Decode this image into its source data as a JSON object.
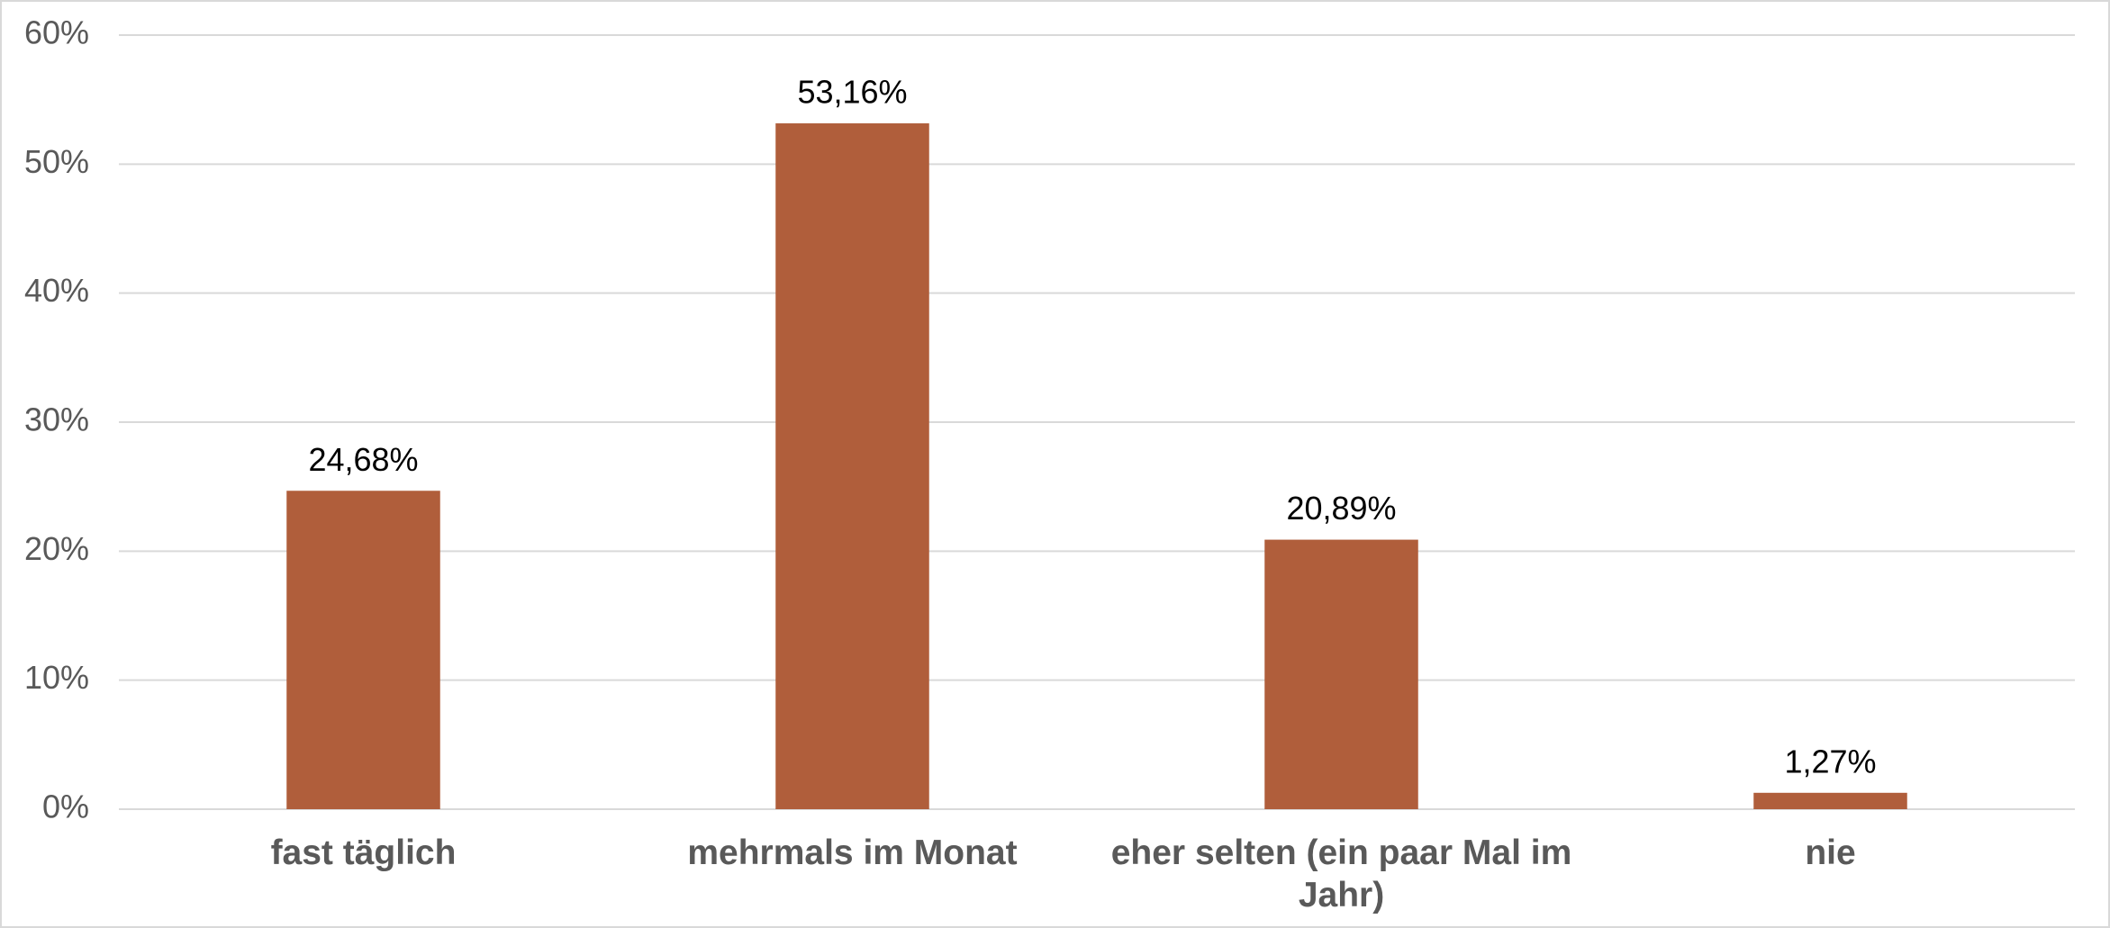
{
  "chart_data": {
    "type": "bar",
    "categories": [
      "fast täglich",
      "mehrmals im Monat",
      "eher selten (ein paar Mal im Jahr)",
      "nie"
    ],
    "values": [
      24.68,
      53.16,
      20.89,
      1.27
    ],
    "value_labels": [
      "24,68%",
      "53,16%",
      "20,89%",
      "1,27%"
    ],
    "color": "#b05e3b",
    "ylim": [
      0,
      60
    ],
    "yticks": [
      {
        "value": 0,
        "label": "0%"
      },
      {
        "value": 10,
        "label": "10%"
      },
      {
        "value": 20,
        "label": "20%"
      },
      {
        "value": 30,
        "label": "30%"
      },
      {
        "value": 40,
        "label": "40%"
      },
      {
        "value": 50,
        "label": "50%"
      },
      {
        "value": 60,
        "label": "60%"
      }
    ],
    "grid": true
  }
}
